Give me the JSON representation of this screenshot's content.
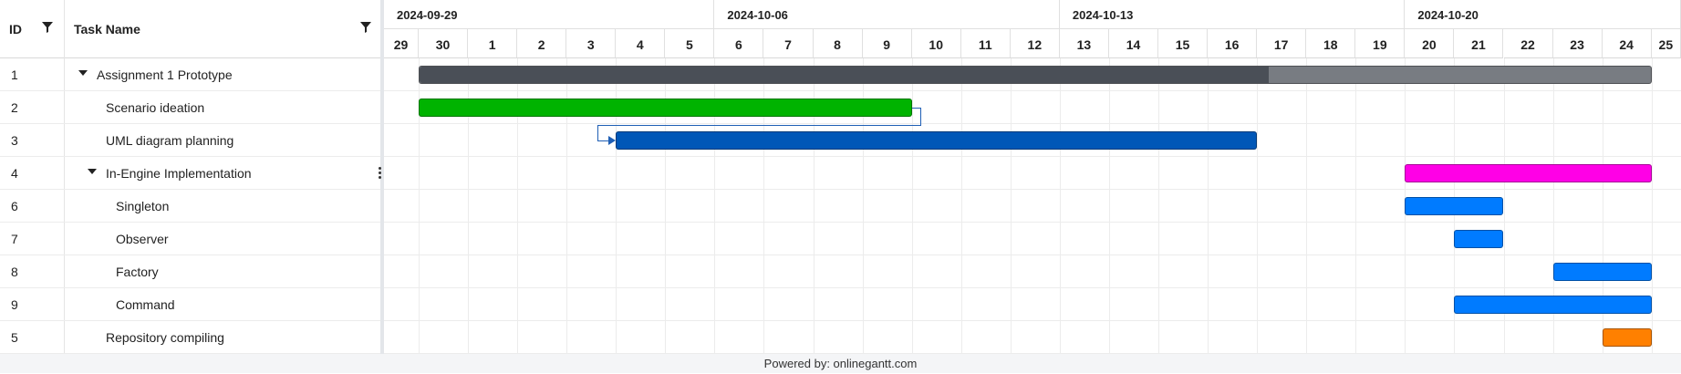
{
  "grid": {
    "col_id": "ID",
    "col_name": "Task Name"
  },
  "weeks": [
    "2024-09-29",
    "2024-10-06",
    "2024-10-13",
    "2024-10-20"
  ],
  "days": [
    "29",
    "30",
    "1",
    "2",
    "3",
    "4",
    "5",
    "6",
    "7",
    "8",
    "9",
    "10",
    "11",
    "12",
    "13",
    "14",
    "15",
    "16",
    "17",
    "18",
    "19",
    "20",
    "21",
    "22",
    "23",
    "24",
    "25"
  ],
  "tasks": [
    {
      "id": "1",
      "name": "Assignment 1 Prototype",
      "level": 0,
      "expandable": true,
      "start": 1,
      "end": 26,
      "progress": 0.69,
      "color": "#787c82",
      "progress_color": "#4a4f57"
    },
    {
      "id": "2",
      "name": "Scenario ideation",
      "level": 1,
      "expandable": false,
      "start": 1,
      "end": 11,
      "color": "#00b300"
    },
    {
      "id": "3",
      "name": "UML diagram planning",
      "level": 1,
      "expandable": false,
      "start": 5,
      "end": 18,
      "color": "#0057b7"
    },
    {
      "id": "4",
      "name": "In-Engine Implementation",
      "level": 1,
      "expandable": true,
      "start": 21,
      "end": 26,
      "color": "#ff00e6"
    },
    {
      "id": "6",
      "name": "Singleton",
      "level": 2,
      "expandable": false,
      "start": 21,
      "end": 23,
      "color": "#007bff"
    },
    {
      "id": "7",
      "name": "Observer",
      "level": 2,
      "expandable": false,
      "start": 22,
      "end": 23,
      "color": "#007bff"
    },
    {
      "id": "8",
      "name": "Factory",
      "level": 2,
      "expandable": false,
      "start": 24,
      "end": 26,
      "color": "#007bff"
    },
    {
      "id": "9",
      "name": "Command",
      "level": 2,
      "expandable": false,
      "start": 22,
      "end": 26,
      "color": "#007bff"
    },
    {
      "id": "5",
      "name": "Repository compiling",
      "level": 1,
      "expandable": false,
      "start": 25,
      "end": 26,
      "color": "#ff8000"
    }
  ],
  "links": [
    {
      "from": "2",
      "to": "3"
    }
  ],
  "footer": "Powered by: onlinegantt.com"
}
